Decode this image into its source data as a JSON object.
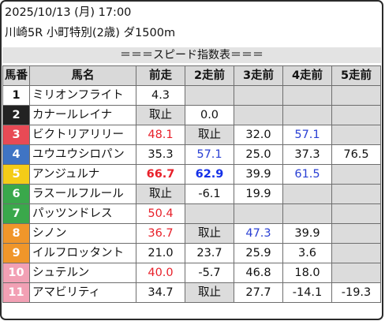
{
  "header": {
    "line1": "2025/10/13 (月) 17:00",
    "line2": "川崎5R 小町特別(2歳) ダ1500m"
  },
  "banner": "＝＝＝スピード指数表＝＝＝",
  "columns": [
    "馬番",
    "馬名",
    "前走",
    "2走前",
    "3走前",
    "4走前",
    "5走前"
  ],
  "horses": [
    {
      "num": "1",
      "name": "ミリオンフライト",
      "bg": "#ffffff",
      "fg": "#111111",
      "cells": [
        {
          "v": "4.3",
          "s": ""
        },
        {
          "v": "",
          "s": "blank"
        },
        {
          "v": "",
          "s": "blank"
        },
        {
          "v": "",
          "s": "blank"
        },
        {
          "v": "",
          "s": "blank"
        }
      ]
    },
    {
      "num": "2",
      "name": "カナールレイナ",
      "bg": "#222222",
      "fg": "#ffffff",
      "cells": [
        {
          "v": "取止",
          "s": "blank"
        },
        {
          "v": "0.0",
          "s": ""
        },
        {
          "v": "",
          "s": "blank"
        },
        {
          "v": "",
          "s": "blank"
        },
        {
          "v": "",
          "s": "blank"
        }
      ]
    },
    {
      "num": "3",
      "name": "ビクトリアリリー",
      "bg": "#e84a55",
      "fg": "#ffffff",
      "cells": [
        {
          "v": "48.1",
          "s": "red"
        },
        {
          "v": "取止",
          "s": "blank"
        },
        {
          "v": "32.0",
          "s": ""
        },
        {
          "v": "57.1",
          "s": "blue"
        },
        {
          "v": "",
          "s": "blank"
        }
      ]
    },
    {
      "num": "4",
      "name": "ユウユウシロパン",
      "bg": "#3f74c4",
      "fg": "#ffffff",
      "cells": [
        {
          "v": "35.3",
          "s": ""
        },
        {
          "v": "57.1",
          "s": "blue"
        },
        {
          "v": "25.0",
          "s": ""
        },
        {
          "v": "37.3",
          "s": ""
        },
        {
          "v": "76.5",
          "s": ""
        }
      ]
    },
    {
      "num": "5",
      "name": "アンジュルナ",
      "bg": "#f4cc18",
      "fg": "#ffffff",
      "cells": [
        {
          "v": "66.7",
          "s": "bred"
        },
        {
          "v": "62.9",
          "s": "bblue"
        },
        {
          "v": "39.9",
          "s": ""
        },
        {
          "v": "61.5",
          "s": "blue"
        },
        {
          "v": "",
          "s": "blank"
        }
      ]
    },
    {
      "num": "6",
      "name": "ラスールフルール",
      "bg": "#3aa84b",
      "fg": "#ffffff",
      "cells": [
        {
          "v": "取止",
          "s": "blank"
        },
        {
          "v": "-6.1",
          "s": ""
        },
        {
          "v": "19.9",
          "s": ""
        },
        {
          "v": "",
          "s": "blank"
        },
        {
          "v": "",
          "s": "blank"
        }
      ]
    },
    {
      "num": "7",
      "name": "パッツンドレス",
      "bg": "#3aa84b",
      "fg": "#ffffff",
      "cells": [
        {
          "v": "50.4",
          "s": "red"
        },
        {
          "v": "",
          "s": "blank"
        },
        {
          "v": "",
          "s": "blank"
        },
        {
          "v": "",
          "s": "blank"
        },
        {
          "v": "",
          "s": "blank"
        }
      ]
    },
    {
      "num": "8",
      "name": "シノン",
      "bg": "#f0962a",
      "fg": "#ffffff",
      "cells": [
        {
          "v": "36.7",
          "s": "red"
        },
        {
          "v": "取止",
          "s": "blank"
        },
        {
          "v": "47.3",
          "s": "blue"
        },
        {
          "v": "39.9",
          "s": ""
        },
        {
          "v": "",
          "s": "blank"
        }
      ]
    },
    {
      "num": "9",
      "name": "イルフロッタント",
      "bg": "#f0962a",
      "fg": "#ffffff",
      "cells": [
        {
          "v": "21.0",
          "s": ""
        },
        {
          "v": "23.7",
          "s": ""
        },
        {
          "v": "25.9",
          "s": ""
        },
        {
          "v": "3.6",
          "s": ""
        },
        {
          "v": "",
          "s": "blank"
        }
      ]
    },
    {
      "num": "10",
      "name": "シュテルン",
      "bg": "#f2a0b4",
      "fg": "#ffffff",
      "cells": [
        {
          "v": "40.0",
          "s": "red"
        },
        {
          "v": "-5.7",
          "s": ""
        },
        {
          "v": "46.8",
          "s": ""
        },
        {
          "v": "18.0",
          "s": ""
        },
        {
          "v": "",
          "s": "blank"
        }
      ]
    },
    {
      "num": "11",
      "name": "アマビリティ",
      "bg": "#f2a0b4",
      "fg": "#ffffff",
      "cells": [
        {
          "v": "34.7",
          "s": ""
        },
        {
          "v": "取止",
          "s": "blank"
        },
        {
          "v": "27.7",
          "s": ""
        },
        {
          "v": "-14.1",
          "s": ""
        },
        {
          "v": "-19.3",
          "s": ""
        }
      ]
    }
  ]
}
